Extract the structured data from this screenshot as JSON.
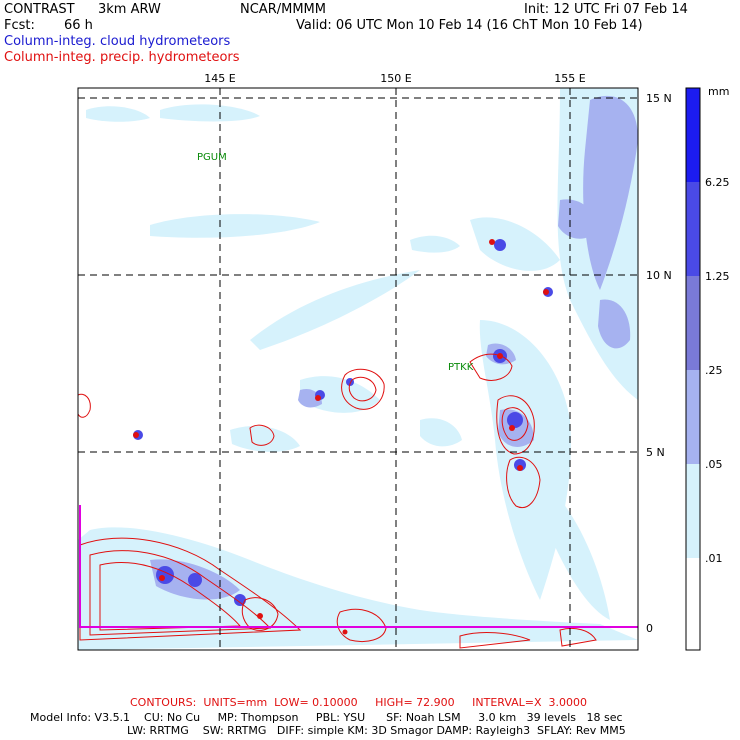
{
  "header": {
    "model": "CONTRAST",
    "resolution": "3km ARW",
    "org": "NCAR/MMMM",
    "init": "Init: 12 UTC Fri 07 Feb 14",
    "fcst_label": "Fcst:",
    "fcst_value": "66 h",
    "valid": "Valid: 06 UTC Mon 10 Feb 14 (16 ChT Mon 10 Feb 14)",
    "field1": "Column-integ. cloud hydrometeors",
    "field2": "Column-integ. precip. hydrometeors"
  },
  "map": {
    "lon_labels": [
      "145 E",
      "150 E",
      "155 E"
    ],
    "lat_labels": [
      "15 N",
      "10 N",
      "5 N",
      "0"
    ],
    "stations": [
      "PGUM",
      "PTKK"
    ]
  },
  "legend": {
    "unit": "mm",
    "levels": [
      "6.25",
      "1.25",
      ".25",
      ".05",
      ".01"
    ],
    "colors": [
      "#1c1cf0",
      "#4a4ae6",
      "#7a7ad8",
      "#a6b2f0",
      "#d6f2fc",
      "#ffffff"
    ]
  },
  "footer": {
    "contours": "CONTOURS:  UNITS=mm  LOW= 0.10000     HIGH= 72.900     INTERVAL=X  3.0000",
    "model_info_1": "Model Info: V3.5.1    CU: No Cu     MP: Thompson     PBL: YSU      SF: Noah LSM     3.0 km   39 levels   18 sec",
    "model_info_2": "LW: RRTMG    SW: RRTMG   DIFF: simple KM: 3D Smagor DAMP: Rayleigh3  SFLAY: Rev MM5"
  }
}
